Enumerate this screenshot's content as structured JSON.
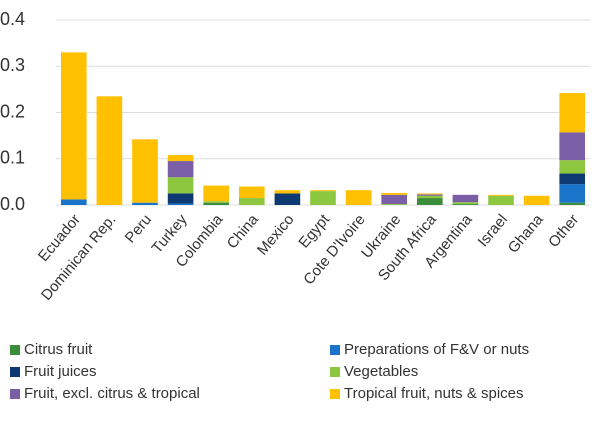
{
  "chart_data": {
    "type": "stacked_bar",
    "categories": [
      "Ecuador",
      "Dominican Rep.",
      "Peru",
      "Turkey",
      "Colombia",
      "China",
      "Mexico",
      "Egypt",
      "Cote D'Ivoire",
      "Ukraine",
      "South Africa",
      "Argentina",
      "Israel",
      "Ghana",
      "Other"
    ],
    "series": [
      {
        "name": "Citrus fruit",
        "color": "#3b8c3b",
        "values": [
          0,
          0,
          0,
          0,
          0.005,
          0,
          0,
          0,
          0,
          0,
          0.015,
          0.002,
          0,
          0,
          0.005
        ]
      },
      {
        "name": "Preparations of F&V or nuts",
        "color": "#1a74c9",
        "values": [
          0.012,
          0,
          0.005,
          0.003,
          0,
          0,
          0,
          0,
          0,
          0,
          0,
          0,
          0,
          0,
          0.04
        ]
      },
      {
        "name": "Fruit juices",
        "color": "#0d3a73",
        "values": [
          0,
          0,
          0,
          0.022,
          0,
          0,
          0.025,
          0,
          0,
          0,
          0,
          0,
          0,
          0,
          0.023
        ]
      },
      {
        "name": "Vegetables",
        "color": "#8dc63f",
        "values": [
          0,
          0,
          0,
          0.035,
          0.003,
          0.015,
          0,
          0.03,
          0,
          0.002,
          0.005,
          0.004,
          0.02,
          0,
          0.029
        ]
      },
      {
        "name": "Fruit, excl. citrus & tropical",
        "color": "#7b5fa6",
        "values": [
          0,
          0,
          0,
          0.035,
          0,
          0,
          0,
          0,
          0,
          0.02,
          0.003,
          0.016,
          0,
          0,
          0.06
        ]
      },
      {
        "name": "Tropical fruit, nuts & spices",
        "color": "#ffc000",
        "values": [
          0.318,
          0.235,
          0.137,
          0.013,
          0.034,
          0.025,
          0.007,
          0.002,
          0.032,
          0.004,
          0.002,
          0,
          0.002,
          0.02,
          0.085
        ]
      }
    ],
    "ylim": [
      0,
      0.4
    ],
    "yticks": [
      {
        "value": 0,
        "label": "0.0"
      },
      0.1,
      0.2,
      0.3,
      0.4
    ],
    "grid": true
  }
}
